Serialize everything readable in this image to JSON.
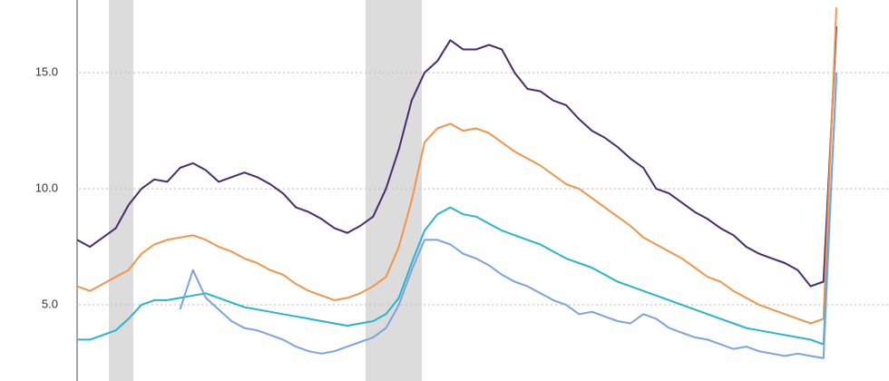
{
  "chart_data": {
    "type": "line",
    "ylim": [
      1.72,
      18.13
    ],
    "yticks": [
      {
        "value": 5,
        "label": "5.0"
      },
      {
        "value": 10,
        "label": "10.0"
      },
      {
        "value": 15,
        "label": "15.0"
      }
    ],
    "grid": true,
    "series": [
      {
        "color": "#4b2a6e",
        "values": [
          7.8,
          7.5,
          7.9,
          8.3,
          9.3,
          10.0,
          10.4,
          10.3,
          10.9,
          11.1,
          10.8,
          10.3,
          10.5,
          10.7,
          10.5,
          10.2,
          9.8,
          9.2,
          9.0,
          8.7,
          8.3,
          8.1,
          8.4,
          8.8,
          10.0,
          11.7,
          13.8,
          15.0,
          15.5,
          16.4,
          16.0,
          16.0,
          16.2,
          16.0,
          15.0,
          14.3,
          14.2,
          13.8,
          13.6,
          13.0,
          12.5,
          12.2,
          11.8,
          11.3,
          10.9,
          10.0,
          9.8,
          9.4,
          9.0,
          8.7,
          8.3,
          8.0,
          7.5,
          7.2,
          7.0,
          6.8,
          6.5,
          5.8,
          6.0,
          17.0
        ]
      },
      {
        "color": "#f0954a",
        "values": [
          5.8,
          5.6,
          5.9,
          6.2,
          6.5,
          7.2,
          7.6,
          7.8,
          7.9,
          8.0,
          7.8,
          7.5,
          7.3,
          7.0,
          6.8,
          6.5,
          6.3,
          5.9,
          5.6,
          5.4,
          5.2,
          5.3,
          5.5,
          5.8,
          6.2,
          7.5,
          9.5,
          12.0,
          12.6,
          12.8,
          12.5,
          12.6,
          12.4,
          12.0,
          11.6,
          11.3,
          11.0,
          10.6,
          10.2,
          10.0,
          9.6,
          9.2,
          8.8,
          8.4,
          7.9,
          7.6,
          7.3,
          7.0,
          6.6,
          6.2,
          6.0,
          5.6,
          5.3,
          5.0,
          4.8,
          4.6,
          4.4,
          4.2,
          4.4,
          17.8
        ]
      },
      {
        "color": "#29b5c9",
        "values": [
          3.5,
          3.5,
          3.7,
          3.9,
          4.4,
          5.0,
          5.2,
          5.2,
          5.3,
          5.4,
          5.5,
          5.3,
          5.1,
          4.9,
          4.8,
          4.7,
          4.6,
          4.5,
          4.4,
          4.3,
          4.2,
          4.1,
          4.2,
          4.3,
          4.6,
          5.3,
          6.8,
          8.2,
          8.9,
          9.2,
          8.9,
          8.8,
          8.5,
          8.2,
          8.0,
          7.8,
          7.6,
          7.3,
          7.0,
          6.8,
          6.6,
          6.3,
          6.0,
          5.8,
          5.6,
          5.4,
          5.2,
          5.0,
          4.8,
          4.6,
          4.4,
          4.2,
          4.0,
          3.9,
          3.8,
          3.7,
          3.6,
          3.5,
          3.3,
          14.8
        ]
      },
      {
        "color": "#7ba3dc",
        "values": [
          null,
          null,
          null,
          null,
          null,
          null,
          null,
          null,
          4.8,
          6.5,
          5.3,
          4.8,
          4.3,
          4.0,
          3.9,
          3.7,
          3.5,
          3.2,
          3.0,
          2.9,
          3.0,
          3.2,
          3.4,
          3.6,
          4.0,
          5.0,
          6.5,
          7.8,
          7.8,
          7.6,
          7.2,
          7.0,
          6.7,
          6.3,
          6.0,
          5.8,
          5.5,
          5.2,
          5.0,
          4.6,
          4.7,
          4.5,
          4.3,
          4.2,
          4.6,
          4.4,
          4.0,
          3.8,
          3.6,
          3.5,
          3.3,
          3.1,
          3.2,
          3.0,
          2.9,
          2.8,
          2.9,
          2.8,
          2.7,
          15.0
        ]
      }
    ]
  }
}
